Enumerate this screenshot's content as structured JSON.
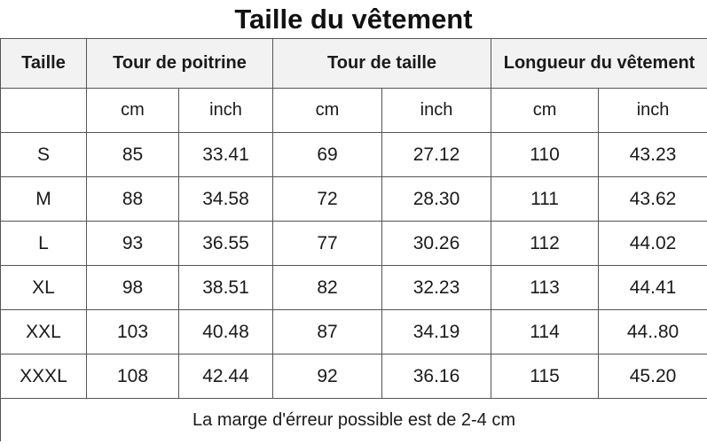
{
  "title": "Taille du vêtement",
  "headers": {
    "size": "Taille",
    "chest": "Tour de poitrine",
    "waist": "Tour de taille",
    "length": "Longueur du vêtement"
  },
  "units": {
    "size": "",
    "chest_cm": "cm",
    "chest_inch": "inch",
    "waist_cm": "cm",
    "waist_inch": "inch",
    "length_cm": "cm",
    "length_inch": "inch"
  },
  "rows": [
    {
      "size": "S",
      "chest_cm": "85",
      "chest_inch": "33.41",
      "waist_cm": "69",
      "waist_inch": "27.12",
      "length_cm": "110",
      "length_inch": "43.23"
    },
    {
      "size": "M",
      "chest_cm": "88",
      "chest_inch": "34.58",
      "waist_cm": "72",
      "waist_inch": "28.30",
      "length_cm": "111",
      "length_inch": "43.62"
    },
    {
      "size": "L",
      "chest_cm": "93",
      "chest_inch": "36.55",
      "waist_cm": "77",
      "waist_inch": "30.26",
      "length_cm": "112",
      "length_inch": "44.02"
    },
    {
      "size": "XL",
      "chest_cm": "98",
      "chest_inch": "38.51",
      "waist_cm": "82",
      "waist_inch": "32.23",
      "length_cm": "113",
      "length_inch": "44.41"
    },
    {
      "size": "XXL",
      "chest_cm": "103",
      "chest_inch": "40.48",
      "waist_cm": "87",
      "waist_inch": "34.19",
      "length_cm": "114",
      "length_inch": "44..80"
    },
    {
      "size": "XXXL",
      "chest_cm": "108",
      "chest_inch": "42.44",
      "waist_cm": "92",
      "waist_inch": "36.16",
      "length_cm": "115",
      "length_inch": "45.20"
    }
  ],
  "footnote": "La marge d'érreur possible est de 2-4 cm",
  "colors": {
    "header_bg": "#f2f2f2",
    "border": "#555555",
    "text": "#1a1a1a"
  }
}
